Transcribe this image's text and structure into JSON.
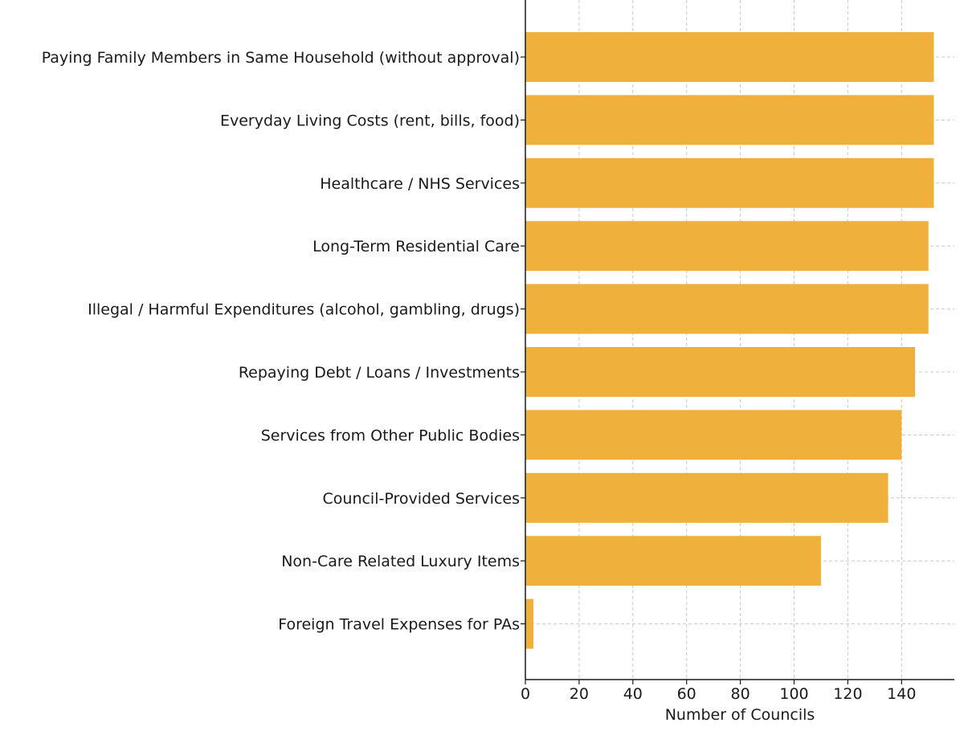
{
  "chart_data": {
    "type": "bar",
    "orientation": "horizontal",
    "categories": [
      "Paying Family Members in Same Household (without approval)",
      "Everyday Living Costs (rent, bills, food)",
      "Healthcare / NHS Services",
      "Long-Term Residential Care",
      "Illegal / Harmful Expenditures (alcohol, gambling, drugs)",
      "Repaying Debt / Loans / Investments",
      "Services from Other Public Bodies",
      "Council-Provided Services",
      "Non-Care Related Luxury Items",
      "Foreign Travel Expenses for PAs"
    ],
    "values": [
      152,
      152,
      152,
      150,
      150,
      145,
      140,
      135,
      110,
      3
    ],
    "title": "",
    "xlabel": "Number of Councils",
    "ylabel": "",
    "xlim": [
      0,
      160
    ],
    "xticks": [
      "0",
      "20",
      "40",
      "60",
      "80",
      "100",
      "120",
      "140"
    ],
    "bar_color": "#f0b13c",
    "grid": true
  }
}
